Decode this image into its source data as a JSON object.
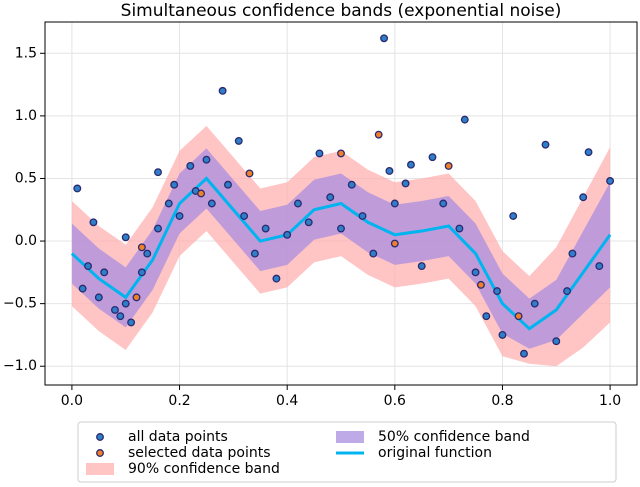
{
  "chart_data": {
    "type": "scatter",
    "title": "Simultaneous confidence bands (exponential noise)",
    "xlim": [
      -0.05,
      1.05
    ],
    "ylim": [
      -1.15,
      1.75
    ],
    "xticks": [
      {
        "value": 0,
        "label": "0.0"
      },
      {
        "value": 0.2,
        "label": "0.2"
      },
      {
        "value": 0.4,
        "label": "0.4"
      },
      {
        "value": 0.6,
        "label": "0.6"
      },
      {
        "value": 0.8,
        "label": "0.8"
      },
      {
        "value": 1,
        "label": "1.0"
      }
    ],
    "yticks": [
      {
        "value": -1,
        "label": "−1.0"
      },
      {
        "value": -0.5,
        "label": "−0.5"
      },
      {
        "value": 0,
        "label": "0.0"
      },
      {
        "value": 0.5,
        "label": "0.5"
      },
      {
        "value": 1,
        "label": "1.0"
      },
      {
        "value": 1.5,
        "label": "1.5"
      }
    ],
    "grid": true,
    "legend": "bottom",
    "series": [
      {
        "name": "all data points",
        "kind": "scatter",
        "color": "#2f7fc8",
        "x": [
          0.01,
          0.02,
          0.03,
          0.04,
          0.05,
          0.06,
          0.08,
          0.09,
          0.1,
          0.11,
          0.1,
          0.13,
          0.14,
          0.16,
          0.16,
          0.18,
          0.19,
          0.2,
          0.22,
          0.23,
          0.25,
          0.26,
          0.28,
          0.29,
          0.31,
          0.32,
          0.34,
          0.36,
          0.38,
          0.4,
          0.42,
          0.44,
          0.46,
          0.48,
          0.5,
          0.52,
          0.54,
          0.56,
          0.58,
          0.59,
          0.6,
          0.62,
          0.63,
          0.65,
          0.67,
          0.69,
          0.72,
          0.73,
          0.75,
          0.77,
          0.79,
          0.8,
          0.82,
          0.84,
          0.86,
          0.88,
          0.9,
          0.92,
          0.93,
          0.95,
          0.96,
          0.98,
          1.0
        ],
        "y": [
          0.42,
          -0.38,
          -0.2,
          0.15,
          -0.45,
          -0.25,
          -0.55,
          -0.6,
          -0.5,
          -0.65,
          0.03,
          -0.25,
          -0.1,
          0.55,
          0.1,
          0.3,
          0.45,
          0.2,
          0.6,
          0.4,
          0.65,
          0.3,
          1.2,
          0.45,
          0.8,
          0.2,
          -0.1,
          0.1,
          -0.3,
          0.05,
          0.3,
          0.15,
          0.7,
          0.35,
          0.1,
          0.45,
          0.2,
          -0.1,
          1.62,
          0.56,
          0.3,
          0.46,
          0.61,
          -0.2,
          0.67,
          0.3,
          0.1,
          0.97,
          -0.25,
          -0.6,
          -0.4,
          -0.75,
          0.2,
          -0.9,
          -0.5,
          0.77,
          -0.8,
          -0.4,
          -0.1,
          0.35,
          0.71,
          -0.2,
          0.48
        ]
      },
      {
        "name": "selected data points",
        "kind": "scatter",
        "color": "#f07f2a",
        "x": [
          0.12,
          0.13,
          0.24,
          0.33,
          0.5,
          0.57,
          0.6,
          0.7,
          0.76,
          0.83
        ],
        "y": [
          -0.45,
          -0.05,
          0.38,
          0.54,
          0.7,
          0.85,
          -0.02,
          0.6,
          -0.35,
          -0.6
        ]
      },
      {
        "name": "90% confidence band",
        "kind": "band",
        "color": "#ffb0b0",
        "x": [
          0,
          0.05,
          0.1,
          0.15,
          0.2,
          0.25,
          0.3,
          0.35,
          0.4,
          0.45,
          0.5,
          0.55,
          0.6,
          0.65,
          0.7,
          0.75,
          0.8,
          0.85,
          0.9,
          0.95,
          1.0
        ],
        "upper": [
          0.32,
          0.12,
          -0.03,
          0.27,
          0.72,
          0.92,
          0.67,
          0.42,
          0.47,
          0.67,
          0.72,
          0.57,
          0.47,
          0.5,
          0.54,
          0.32,
          -0.08,
          -0.28,
          -0.05,
          0.35,
          0.75
        ],
        "lower": [
          -0.52,
          -0.72,
          -0.87,
          -0.57,
          -0.12,
          0.08,
          -0.17,
          -0.42,
          -0.37,
          -0.17,
          -0.12,
          -0.27,
          -0.37,
          -0.34,
          -0.3,
          -0.52,
          -0.92,
          -0.98,
          -1.0,
          -0.85,
          -0.65
        ]
      },
      {
        "name": "50% confidence band",
        "kind": "band",
        "color": "#a98ee0",
        "x": [
          0,
          0.05,
          0.1,
          0.15,
          0.2,
          0.25,
          0.3,
          0.35,
          0.4,
          0.45,
          0.5,
          0.55,
          0.6,
          0.65,
          0.7,
          0.75,
          0.8,
          0.85,
          0.9,
          0.95,
          1.0
        ],
        "upper": [
          0.14,
          -0.06,
          -0.21,
          0.09,
          0.54,
          0.74,
          0.49,
          0.24,
          0.29,
          0.49,
          0.54,
          0.39,
          0.29,
          0.32,
          0.36,
          0.14,
          -0.26,
          -0.46,
          -0.31,
          0.08,
          0.47
        ],
        "lower": [
          -0.34,
          -0.54,
          -0.69,
          -0.39,
          0.06,
          0.26,
          0.01,
          -0.24,
          -0.19,
          0.01,
          0.06,
          -0.09,
          -0.19,
          -0.16,
          -0.12,
          -0.34,
          -0.74,
          -0.86,
          -0.79,
          -0.58,
          -0.37
        ]
      },
      {
        "name": "original function",
        "kind": "line",
        "color": "#00b4f0",
        "x": [
          0,
          0.05,
          0.1,
          0.15,
          0.2,
          0.25,
          0.3,
          0.35,
          0.4,
          0.45,
          0.5,
          0.55,
          0.6,
          0.65,
          0.7,
          0.75,
          0.8,
          0.85,
          0.9,
          0.95,
          1.0
        ],
        "y": [
          -0.1,
          -0.3,
          -0.45,
          -0.15,
          0.3,
          0.5,
          0.25,
          0.0,
          0.05,
          0.25,
          0.3,
          0.15,
          0.05,
          0.08,
          0.12,
          -0.1,
          -0.5,
          -0.7,
          -0.55,
          -0.25,
          0.05
        ]
      }
    ]
  }
}
